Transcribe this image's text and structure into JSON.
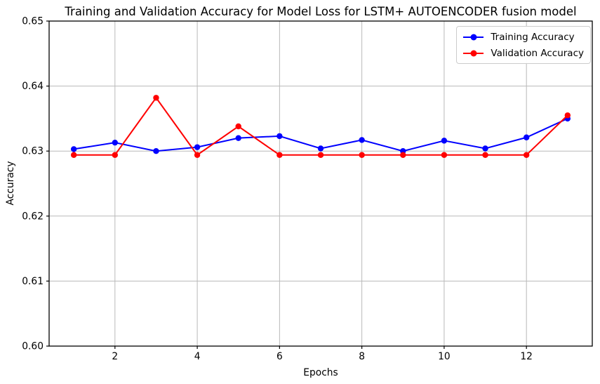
{
  "figure": {
    "title": "Training and Validation Accuracy for Model Loss for LSTM+ AUTOENCODER fusion model",
    "xlabel": "Epochs",
    "ylabel": "Accuracy"
  },
  "chart_data": {
    "type": "line",
    "title": "Training and Validation Accuracy for Model Loss for LSTM+ AUTOENCODER fusion model",
    "xlabel": "Epochs",
    "ylabel": "Accuracy",
    "x": [
      1,
      2,
      3,
      4,
      5,
      6,
      7,
      8,
      9,
      10,
      11,
      12,
      13
    ],
    "series": [
      {
        "name": "Training Accuracy",
        "color": "#0000ff",
        "marker": "circle",
        "values": [
          0.6303,
          0.6313,
          0.63,
          0.6306,
          0.632,
          0.6323,
          0.6304,
          0.6317,
          0.63,
          0.6316,
          0.6304,
          0.6321,
          0.635
        ]
      },
      {
        "name": "Validation Accuracy",
        "color": "#ff0000",
        "marker": "circle",
        "values": [
          0.6294,
          0.6294,
          0.6382,
          0.6294,
          0.6338,
          0.6294,
          0.6294,
          0.6294,
          0.6294,
          0.6294,
          0.6294,
          0.6294,
          0.6355
        ]
      }
    ],
    "xlim": [
      0.4,
      13.6
    ],
    "ylim": [
      0.6,
      0.65
    ],
    "x_ticks": [
      2,
      4,
      6,
      8,
      10,
      12
    ],
    "y_ticks": [
      0.6,
      0.61,
      0.62,
      0.63,
      0.64,
      0.65
    ],
    "grid": true,
    "grid_color": "#b9b9b9",
    "legend_position": "upper right"
  }
}
